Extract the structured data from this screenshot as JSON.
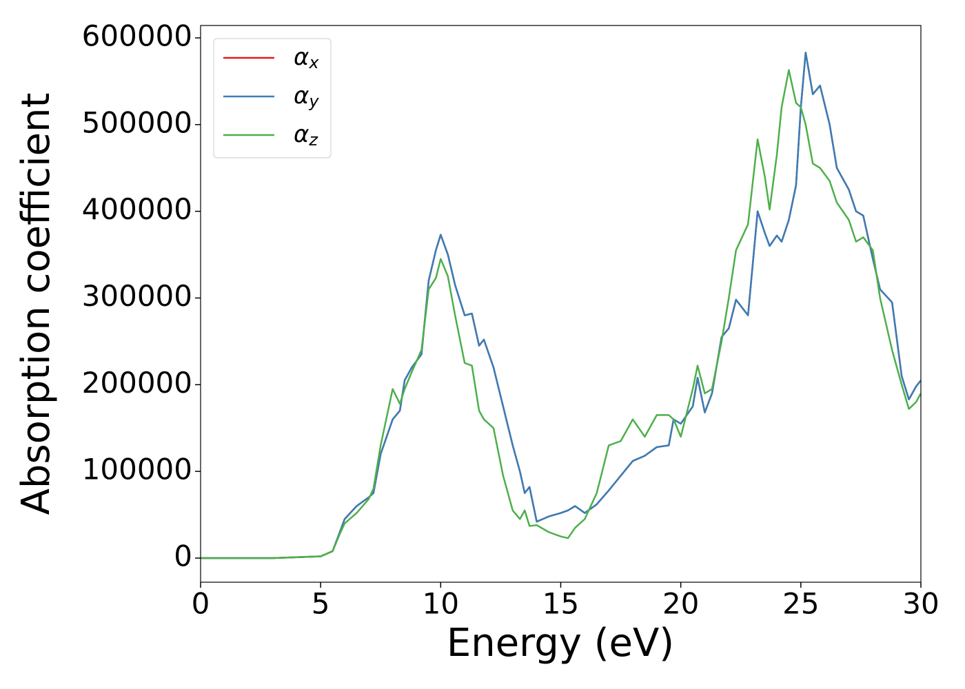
{
  "chart_data": {
    "type": "line",
    "xlabel": "Energy (eV)",
    "ylabel": "Absorption coefficient",
    "x": [
      0,
      1,
      2,
      3,
      4,
      5,
      5.5,
      5.8,
      6,
      6.5,
      7,
      7.2,
      7.5,
      8,
      8.3,
      8.5,
      8.8,
      9.2,
      9.5,
      9.8,
      10,
      10.3,
      10.6,
      11,
      11.3,
      11.6,
      11.8,
      12.2,
      12.6,
      13,
      13.3,
      13.5,
      13.7,
      14,
      14.5,
      15,
      15.3,
      15.6,
      16,
      16.5,
      17,
      17.5,
      18,
      18.5,
      19,
      19.5,
      19.7,
      20,
      20.5,
      20.7,
      21,
      21.3,
      21.7,
      22,
      22.3,
      22.8,
      23.2,
      23.5,
      23.7,
      24,
      24.2,
      24.5,
      24.8,
      25,
      25.2,
      25.5,
      25.8,
      26.2,
      26.5,
      27,
      27.3,
      27.6,
      28,
      28.3,
      28.8,
      29.2,
      29.5,
      29.8,
      30
    ],
    "series": [
      {
        "name": "αx",
        "color": "#e41a1c",
        "values": [
          0,
          0,
          0,
          0,
          1000,
          2000,
          8000,
          30000,
          45000,
          60000,
          70000,
          75000,
          120000,
          160000,
          170000,
          205000,
          220000,
          235000,
          320000,
          355000,
          373000,
          350000,
          315000,
          280000,
          282000,
          245000,
          252000,
          220000,
          175000,
          130000,
          100000,
          75000,
          82000,
          42000,
          48000,
          52000,
          55000,
          60000,
          52000,
          62000,
          78000,
          95000,
          112000,
          118000,
          128000,
          130000,
          160000,
          155000,
          175000,
          208000,
          168000,
          190000,
          255000,
          265000,
          298000,
          280000,
          400000,
          375000,
          360000,
          372000,
          365000,
          390000,
          430000,
          520000,
          583000,
          535000,
          545000,
          500000,
          450000,
          425000,
          400000,
          395000,
          345000,
          310000,
          295000,
          210000,
          183000,
          198000,
          205000
        ]
      },
      {
        "name": "αy",
        "color": "#377eb8",
        "values": [
          0,
          0,
          0,
          0,
          1000,
          2000,
          8000,
          30000,
          45000,
          60000,
          70000,
          75000,
          120000,
          160000,
          170000,
          205000,
          220000,
          235000,
          320000,
          355000,
          373000,
          350000,
          315000,
          280000,
          282000,
          245000,
          252000,
          220000,
          175000,
          130000,
          100000,
          75000,
          82000,
          42000,
          48000,
          52000,
          55000,
          60000,
          52000,
          62000,
          78000,
          95000,
          112000,
          118000,
          128000,
          130000,
          160000,
          155000,
          175000,
          208000,
          168000,
          190000,
          255000,
          265000,
          298000,
          280000,
          400000,
          375000,
          360000,
          372000,
          365000,
          390000,
          430000,
          520000,
          583000,
          535000,
          545000,
          500000,
          450000,
          425000,
          400000,
          395000,
          345000,
          310000,
          295000,
          210000,
          183000,
          198000,
          205000
        ]
      },
      {
        "name": "αz",
        "color": "#4daf4a",
        "values": [
          0,
          0,
          0,
          0,
          1000,
          2000,
          8000,
          28000,
          40000,
          52000,
          68000,
          80000,
          130000,
          195000,
          178000,
          195000,
          215000,
          240000,
          310000,
          323000,
          345000,
          325000,
          280000,
          225000,
          222000,
          170000,
          160000,
          150000,
          95000,
          55000,
          45000,
          55000,
          37000,
          38000,
          30000,
          25000,
          23000,
          35000,
          45000,
          75000,
          130000,
          135000,
          160000,
          140000,
          165000,
          165000,
          160000,
          140000,
          195000,
          222000,
          190000,
          195000,
          250000,
          300000,
          355000,
          385000,
          483000,
          440000,
          402000,
          465000,
          520000,
          563000,
          525000,
          520000,
          500000,
          455000,
          450000,
          435000,
          410000,
          390000,
          365000,
          370000,
          355000,
          300000,
          240000,
          200000,
          172000,
          180000,
          190000
        ]
      }
    ],
    "xlim": [
      0,
      30
    ],
    "xticks": [
      0,
      5,
      10,
      15,
      20,
      25,
      30
    ],
    "ylim": [
      -27815,
      614305
    ],
    "yticks": [
      0,
      100000,
      200000,
      300000,
      400000,
      500000,
      600000
    ],
    "legend": "upper left",
    "grid": false
  }
}
